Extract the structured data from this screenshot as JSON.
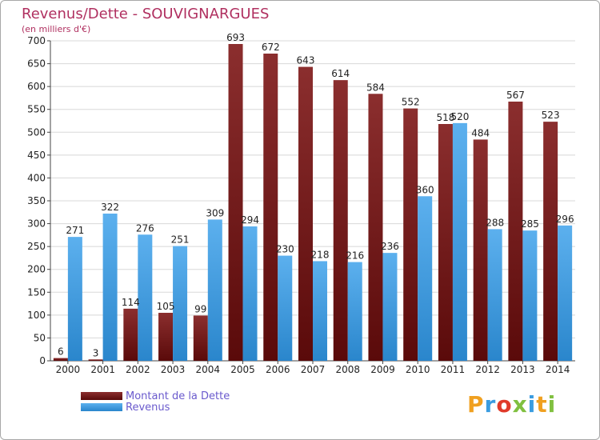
{
  "chart_data": {
    "type": "bar",
    "title": "Revenus/Dette - SOUVIGNARGUES",
    "subtitle": "(en milliers d'€)",
    "categories": [
      "2000",
      "2001",
      "2002",
      "2003",
      "2004",
      "2005",
      "2006",
      "2007",
      "2008",
      "2009",
      "2010",
      "2011",
      "2012",
      "2013",
      "2014"
    ],
    "series": [
      {
        "name": "Montant de la Dette",
        "color": "#7a1a1a",
        "values": [
          6,
          3,
          114,
          105,
          99,
          693,
          672,
          643,
          614,
          584,
          552,
          518,
          484,
          567,
          523
        ]
      },
      {
        "name": "Revenus",
        "color": "#3a9ce0",
        "values": [
          271,
          322,
          276,
          251,
          309,
          294,
          230,
          218,
          216,
          236,
          360,
          520,
          288,
          285,
          296
        ]
      }
    ],
    "ylim": [
      0,
      700
    ],
    "yticks": [
      0,
      50,
      100,
      150,
      200,
      250,
      300,
      350,
      400,
      450,
      500,
      550,
      600,
      650,
      700
    ],
    "grid": true,
    "legend": "bottom-left"
  },
  "branding": {
    "logo_letters": [
      "P",
      "r",
      "o",
      "x",
      "i",
      "t",
      "i"
    ],
    "logo_colors": [
      "#f0a020",
      "#3a9ce0",
      "#e03a2a",
      "#80c040",
      "#3a9ce0",
      "#f0a020",
      "#80c040"
    ]
  }
}
